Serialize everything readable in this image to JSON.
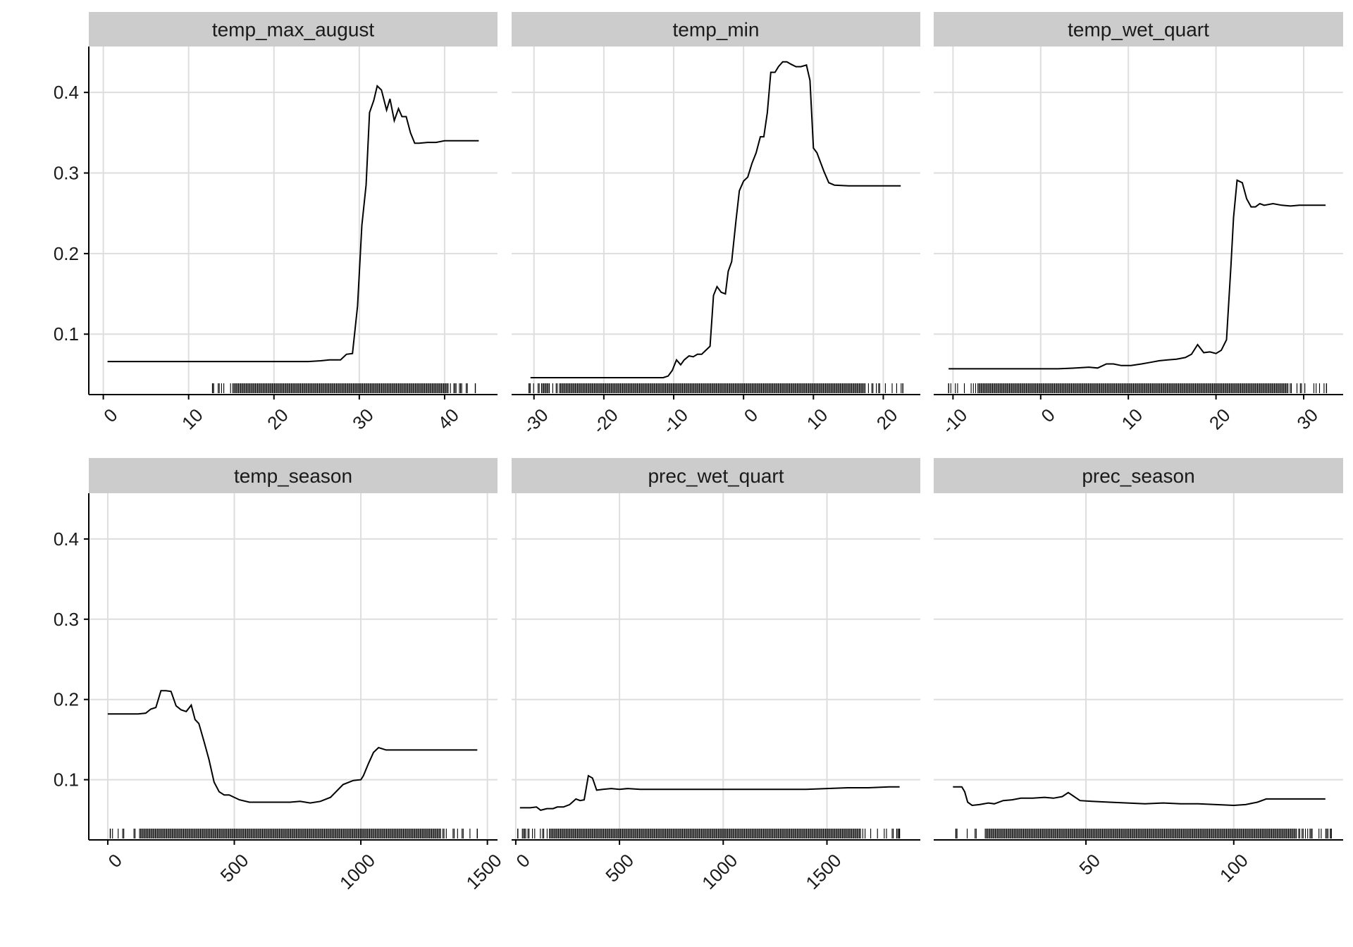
{
  "chart_data": {
    "type": "line",
    "layout": "facet-grid 2x3, shared y axis, free x axes, rug marks on x",
    "grid": true,
    "y_axis": {
      "ticks": [
        0.1,
        0.2,
        0.3,
        0.4
      ],
      "tick_labels": [
        "0.1",
        "0.2",
        "0.3",
        "0.4"
      ],
      "ylim": [
        0.025,
        0.457
      ]
    },
    "panels": [
      {
        "title": "temp_max_august",
        "xlim": [
          -1.7,
          46.2
        ],
        "x_ticks": [
          0,
          10,
          20,
          30,
          40
        ],
        "x_tick_labels": [
          "0",
          "10",
          "20",
          "30",
          "40"
        ],
        "x": [
          0.5,
          5,
          10,
          15,
          20,
          24,
          25.5,
          26.5,
          27.8,
          28.5,
          29.2,
          29.8,
          30.3,
          30.8,
          31.2,
          31.7,
          32.1,
          32.6,
          33.2,
          33.6,
          34.1,
          34.6,
          35.0,
          35.5,
          36.0,
          36.5,
          37.0,
          38.0,
          39.0,
          40.0,
          42.0,
          44.0
        ],
        "y": [
          0.066,
          0.066,
          0.066,
          0.066,
          0.066,
          0.066,
          0.067,
          0.068,
          0.068,
          0.075,
          0.076,
          0.135,
          0.235,
          0.285,
          0.375,
          0.39,
          0.408,
          0.403,
          0.378,
          0.392,
          0.365,
          0.38,
          0.37,
          0.37,
          0.35,
          0.337,
          0.337,
          0.338,
          0.338,
          0.34,
          0.34,
          0.34
        ],
        "rug_range": [
          12.8,
          43.6
        ]
      },
      {
        "title": "temp_min",
        "xlim": [
          -33.2,
          25.3
        ],
        "x_ticks": [
          -30,
          -20,
          -10,
          0,
          10,
          20
        ],
        "x_tick_labels": [
          "-30",
          "-20",
          "-10",
          "0",
          "10",
          "20"
        ],
        "x": [
          -30.5,
          -25,
          -20,
          -15,
          -11.5,
          -10.8,
          -10.2,
          -9.6,
          -9.0,
          -8.5,
          -7.8,
          -7.2,
          -6.6,
          -6.0,
          -5.4,
          -4.8,
          -4.3,
          -3.8,
          -3.2,
          -2.6,
          -2.2,
          -1.7,
          -1.1,
          -0.6,
          0.0,
          0.6,
          1.2,
          1.8,
          2.4,
          2.9,
          3.4,
          3.9,
          4.5,
          5.0,
          5.6,
          6.2,
          6.8,
          7.5,
          8.2,
          9.0,
          9.5,
          10.0,
          10.5,
          11.5,
          12.2,
          13.0,
          15.0,
          18.0,
          22.5
        ],
        "y": [
          0.046,
          0.046,
          0.046,
          0.046,
          0.046,
          0.048,
          0.055,
          0.068,
          0.062,
          0.068,
          0.073,
          0.072,
          0.075,
          0.075,
          0.08,
          0.085,
          0.148,
          0.159,
          0.152,
          0.15,
          0.178,
          0.19,
          0.24,
          0.278,
          0.29,
          0.295,
          0.312,
          0.325,
          0.345,
          0.345,
          0.375,
          0.425,
          0.425,
          0.432,
          0.438,
          0.438,
          0.435,
          0.432,
          0.432,
          0.434,
          0.415,
          0.331,
          0.325,
          0.302,
          0.288,
          0.285,
          0.284,
          0.284,
          0.284
        ],
        "rug_range": [
          -30.7,
          22.8
        ]
      },
      {
        "title": "temp_wet_quart",
        "xlim": [
          -12.2,
          34.5
        ],
        "x_ticks": [
          -10,
          0,
          10,
          20,
          30
        ],
        "x_tick_labels": [
          "-10",
          "0",
          "10",
          "20",
          "30"
        ],
        "x": [
          -10.5,
          -5,
          0,
          2,
          4,
          5.5,
          6.5,
          7.5,
          8.3,
          9.2,
          10.3,
          11.5,
          12.5,
          13.5,
          14.5,
          15.5,
          16.5,
          17.2,
          17.9,
          18.6,
          19.3,
          20.0,
          20.6,
          21.2,
          21.7,
          22.0,
          22.4,
          23.0,
          23.5,
          24.0,
          24.5,
          25.0,
          25.5,
          26.5,
          27.5,
          28.5,
          29.5,
          30.5,
          31.5,
          32.5
        ],
        "y": [
          0.057,
          0.057,
          0.057,
          0.057,
          0.058,
          0.059,
          0.058,
          0.063,
          0.063,
          0.061,
          0.061,
          0.063,
          0.065,
          0.067,
          0.068,
          0.069,
          0.071,
          0.075,
          0.087,
          0.077,
          0.078,
          0.076,
          0.08,
          0.093,
          0.185,
          0.245,
          0.291,
          0.288,
          0.268,
          0.258,
          0.258,
          0.262,
          0.26,
          0.262,
          0.26,
          0.259,
          0.26,
          0.26,
          0.26,
          0.26
        ],
        "rug_range": [
          -10.5,
          32.6
        ]
      },
      {
        "title": "temp_season",
        "xlim": [
          -75,
          1540
        ],
        "x_ticks": [
          0,
          500,
          1000,
          1500
        ],
        "x_tick_labels": [
          "0",
          "500",
          "1000",
          "1500"
        ],
        "x": [
          0,
          60,
          120,
          150,
          170,
          190,
          210,
          230,
          250,
          270,
          290,
          310,
          330,
          345,
          360,
          380,
          400,
          420,
          440,
          460,
          480,
          520,
          560,
          600,
          660,
          720,
          760,
          800,
          840,
          880,
          930,
          970,
          1000,
          1010,
          1030,
          1050,
          1070,
          1100,
          1200,
          1300,
          1400,
          1460
        ],
        "y": [
          0.182,
          0.182,
          0.182,
          0.183,
          0.188,
          0.19,
          0.211,
          0.211,
          0.21,
          0.192,
          0.187,
          0.185,
          0.193,
          0.175,
          0.17,
          0.148,
          0.125,
          0.097,
          0.085,
          0.081,
          0.081,
          0.075,
          0.072,
          0.072,
          0.072,
          0.072,
          0.073,
          0.071,
          0.073,
          0.078,
          0.094,
          0.099,
          0.1,
          0.105,
          0.12,
          0.134,
          0.14,
          0.137,
          0.137,
          0.137,
          0.137,
          0.137
        ],
        "rug_range": [
          10,
          1460
        ]
      },
      {
        "title": "prec_wet_quart",
        "xlim": [
          -20,
          1950
        ],
        "x_ticks": [
          0,
          500,
          1000,
          1500
        ],
        "x_tick_labels": [
          "0",
          "500",
          "1000",
          "1500"
        ],
        "x": [
          20,
          70,
          100,
          120,
          150,
          180,
          200,
          230,
          260,
          290,
          310,
          330,
          350,
          370,
          390,
          420,
          460,
          500,
          540,
          600,
          800,
          1000,
          1200,
          1400,
          1500,
          1600,
          1700,
          1800,
          1850
        ],
        "y": [
          0.065,
          0.065,
          0.066,
          0.062,
          0.064,
          0.064,
          0.066,
          0.066,
          0.069,
          0.076,
          0.074,
          0.075,
          0.105,
          0.102,
          0.087,
          0.088,
          0.089,
          0.088,
          0.089,
          0.088,
          0.088,
          0.088,
          0.088,
          0.088,
          0.089,
          0.09,
          0.09,
          0.091,
          0.091
        ],
        "rug_range": [
          10,
          1850
        ]
      },
      {
        "title": "prec_season",
        "xlim": [
          -1.5,
          137.0
        ],
        "x_ticks": [
          50,
          100
        ],
        "x_tick_labels": [
          "50",
          "100"
        ],
        "x": [
          5,
          8,
          9,
          10,
          11.5,
          14,
          17,
          19,
          22,
          25,
          28,
          32,
          36,
          39,
          42,
          44,
          48,
          52,
          58,
          64,
          70,
          76,
          82,
          88,
          94,
          100,
          104,
          108,
          111,
          115,
          120,
          126,
          131
        ],
        "y": [
          0.091,
          0.091,
          0.085,
          0.072,
          0.068,
          0.069,
          0.071,
          0.07,
          0.074,
          0.075,
          0.077,
          0.077,
          0.078,
          0.077,
          0.079,
          0.084,
          0.074,
          0.073,
          0.072,
          0.071,
          0.07,
          0.071,
          0.07,
          0.07,
          0.069,
          0.068,
          0.069,
          0.072,
          0.076,
          0.076,
          0.076,
          0.076,
          0.076
        ],
        "rug_range": [
          6,
          133
        ]
      }
    ]
  }
}
